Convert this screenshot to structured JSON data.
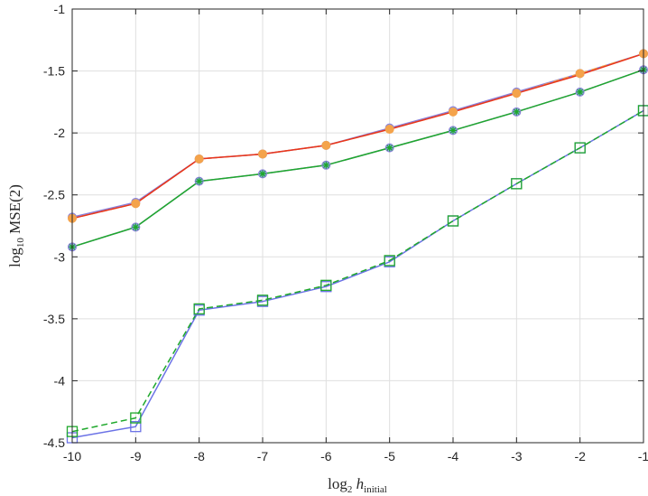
{
  "chart_data": {
    "type": "line",
    "title": "",
    "xlabel": {
      "base": "log",
      "sub1": "2",
      "mid": " h",
      "sub2": "initial"
    },
    "ylabel": {
      "base": "log",
      "sub1": "10",
      "rest": " MSE(2)"
    },
    "x": [
      -10,
      -9,
      -8,
      -7,
      -6,
      -5,
      -4,
      -3,
      -2,
      -1
    ],
    "xlim": [
      -10,
      -1
    ],
    "ylim": [
      -4.5,
      -1
    ],
    "xticks": [
      -10,
      -9,
      -8,
      -7,
      -6,
      -5,
      -4,
      -3,
      -2,
      -1
    ],
    "yticks": [
      -4.5,
      -4,
      -3.5,
      -3,
      -2.5,
      -2,
      -1.5,
      -1
    ],
    "xtick_labels": [
      "-10",
      "-9",
      "-8",
      "-7",
      "-6",
      "-5",
      "-4",
      "-3",
      "-2",
      "-1"
    ],
    "ytick_labels": [
      "-4.5",
      "-4",
      "-3.5",
      "-3",
      "-2.5",
      "-2",
      "-1.5",
      "-1"
    ],
    "grid": true,
    "series": [
      {
        "values": [
          -2.68,
          -2.56,
          -2.21,
          -2.17,
          -2.1,
          -1.96,
          -1.82,
          -1.67,
          -1.52,
          -1.36
        ],
        "color": "#8a7fd9",
        "dash": false,
        "marker": "circle-filled",
        "marker_fill": "#8aa6e6"
      },
      {
        "values": [
          -2.69,
          -2.57,
          -2.21,
          -2.17,
          -2.1,
          -1.97,
          -1.83,
          -1.68,
          -1.52,
          -1.36
        ],
        "color": "#f4a34b",
        "dash": true,
        "marker": "circle-filled",
        "marker_fill": "#f4a34b"
      },
      {
        "values": [
          -2.69,
          -2.57,
          -2.21,
          -2.17,
          -2.1,
          -1.97,
          -1.83,
          -1.68,
          -1.53,
          -1.36
        ],
        "color": "#e8341c",
        "dash": false,
        "marker": "none",
        "marker_fill": ""
      },
      {
        "values": [
          -2.92,
          -2.76,
          -2.39,
          -2.33,
          -2.26,
          -2.12,
          -1.98,
          -1.83,
          -1.67,
          -1.49
        ],
        "color": "#8a7fd9",
        "dash": false,
        "marker": "circle-filled",
        "marker_fill": "#8aa6e6"
      },
      {
        "values": [
          -2.92,
          -2.76,
          -2.39,
          -2.33,
          -2.26,
          -2.12,
          -1.98,
          -1.83,
          -1.67,
          -1.49
        ],
        "color": "#1fa82c",
        "dash": false,
        "marker": "star",
        "marker_fill": ""
      },
      {
        "values": [
          -4.46,
          -4.37,
          -3.43,
          -3.36,
          -3.24,
          -3.04,
          -2.71,
          -2.41,
          -2.12,
          -1.82
        ],
        "color": "#6b72e6",
        "dash": false,
        "marker": "square-open",
        "marker_fill": ""
      },
      {
        "values": [
          -4.41,
          -4.3,
          -3.42,
          -3.35,
          -3.23,
          -3.03,
          -2.71,
          -2.41,
          -2.12,
          -1.82
        ],
        "color": "#1fa82c",
        "dash": true,
        "marker": "square-open",
        "marker_fill": ""
      }
    ]
  }
}
